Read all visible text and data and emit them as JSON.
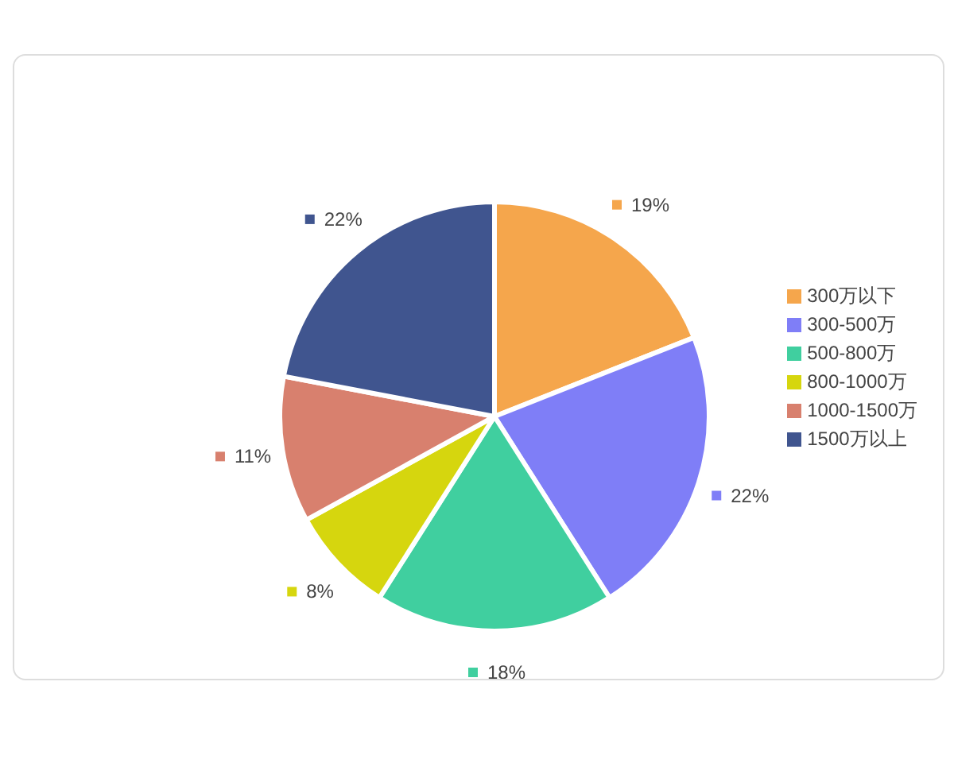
{
  "chart_data": {
    "type": "pie",
    "categories": [
      "300万以下",
      "300-500万",
      "500-800万",
      "800-1000万",
      "1000-1500万",
      "1500万以上"
    ],
    "values": [
      19,
      22,
      18,
      8,
      11,
      22
    ],
    "value_labels": [
      "19%",
      "22%",
      "18%",
      "8%",
      "11%",
      "22%"
    ],
    "colors": [
      "#f5a64c",
      "#7f7ef7",
      "#40cf9f",
      "#d6d60e",
      "#d8806e",
      "#40558f"
    ],
    "legend": "right"
  }
}
